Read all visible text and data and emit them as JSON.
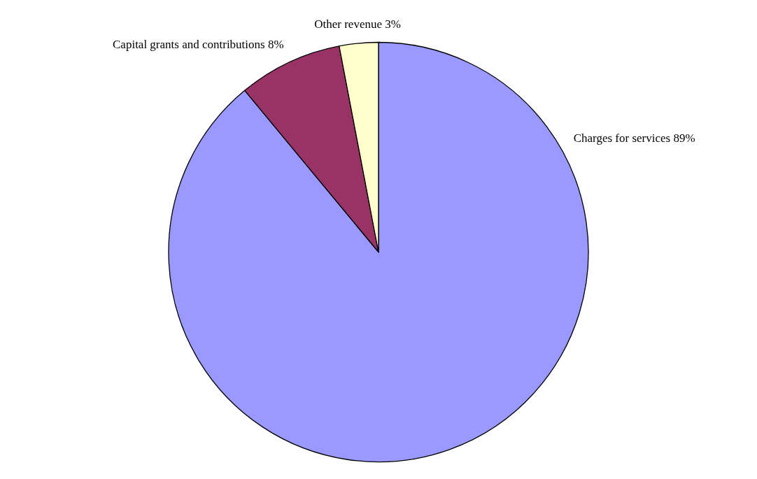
{
  "chart_data": {
    "type": "pie",
    "categories": [
      "Charges for services",
      "Capital grants and contributions",
      "Other revenue"
    ],
    "values": [
      89,
      8,
      3
    ],
    "value_labels": [
      "89%",
      "8%",
      "3%"
    ],
    "colors": [
      "#9999ff",
      "#993366",
      "#ffffcc"
    ]
  }
}
